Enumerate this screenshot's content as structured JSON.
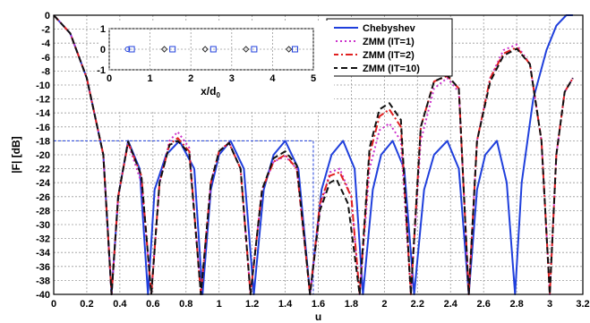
{
  "chart_data": [
    {
      "type": "line",
      "xlabel": "u",
      "ylabel": "|F| [dB]",
      "xlim": [
        0,
        3.2
      ],
      "ylim": [
        -40,
        0
      ],
      "grid": true,
      "legend_position": "top-right",
      "x_ticks": [
        "0",
        "0.2",
        "0.4",
        "0.6",
        "0.8",
        "1",
        "1.2",
        "1.4",
        "1.6",
        "1.8",
        "2",
        "2.2",
        "2.4",
        "2.6",
        "2.8",
        "3",
        "3.2"
      ],
      "y_ticks": [
        "0",
        "-2",
        "-4",
        "-6",
        "-8",
        "-10",
        "-12",
        "-14",
        "-16",
        "-18",
        "-20",
        "-22",
        "-24",
        "-26",
        "-28",
        "-30",
        "-32",
        "-34",
        "-36",
        "-38",
        "-40"
      ],
      "reference_line": {
        "y": -18,
        "x_range": [
          0,
          1.57
        ]
      },
      "series": [
        {
          "name": "Chebyshev",
          "color": "#1f3fdc",
          "dash": "solid",
          "points": [
            [
              0,
              0
            ],
            [
              0.1,
              -2.6
            ],
            [
              0.2,
              -9
            ],
            [
              0.3,
              -20
            ],
            [
              0.35,
              -40
            ],
            [
              0.39,
              -26
            ],
            [
              0.45,
              -18
            ],
            [
              0.52,
              -22
            ],
            [
              0.57,
              -40
            ],
            [
              0.61,
              -25
            ],
            [
              0.68,
              -20
            ],
            [
              0.76,
              -18
            ],
            [
              0.85,
              -22
            ],
            [
              0.9,
              -40
            ],
            [
              0.95,
              -25
            ],
            [
              1.0,
              -20
            ],
            [
              1.07,
              -18
            ],
            [
              1.15,
              -22
            ],
            [
              1.21,
              -40
            ],
            [
              1.27,
              -25
            ],
            [
              1.33,
              -20
            ],
            [
              1.4,
              -18
            ],
            [
              1.48,
              -22
            ],
            [
              1.55,
              -40
            ],
            [
              1.62,
              -25
            ],
            [
              1.68,
              -20
            ],
            [
              1.75,
              -18
            ],
            [
              1.82,
              -22
            ],
            [
              1.87,
              -40
            ],
            [
              1.93,
              -25
            ],
            [
              1.98,
              -20
            ],
            [
              2.05,
              -18
            ],
            [
              2.12,
              -22
            ],
            [
              2.18,
              -40
            ],
            [
              2.24,
              -25
            ],
            [
              2.3,
              -20
            ],
            [
              2.38,
              -18
            ],
            [
              2.45,
              -22
            ],
            [
              2.51,
              -40
            ],
            [
              2.56,
              -25
            ],
            [
              2.61,
              -20
            ],
            [
              2.68,
              -18
            ],
            [
              2.74,
              -24
            ],
            [
              2.79,
              -40
            ],
            [
              2.83,
              -24
            ],
            [
              2.9,
              -12
            ],
            [
              2.98,
              -5
            ],
            [
              3.04,
              -1.5
            ],
            [
              3.1,
              0
            ],
            [
              3.14,
              0
            ]
          ]
        },
        {
          "name": "ZMM (IT=1)",
          "color": "#cc33cc",
          "dash": "dotted",
          "points": [
            [
              0,
              0
            ],
            [
              0.1,
              -2.6
            ],
            [
              0.2,
              -9
            ],
            [
              0.3,
              -20
            ],
            [
              0.35,
              -40
            ],
            [
              0.39,
              -26
            ],
            [
              0.45,
              -18.3
            ],
            [
              0.53,
              -24
            ],
            [
              0.59,
              -40
            ],
            [
              0.64,
              -24
            ],
            [
              0.7,
              -18
            ],
            [
              0.75,
              -16.7
            ],
            [
              0.82,
              -19
            ],
            [
              0.89,
              -40
            ],
            [
              0.95,
              -24
            ],
            [
              1.0,
              -19.5
            ],
            [
              1.06,
              -18.2
            ],
            [
              1.13,
              -22
            ],
            [
              1.19,
              -40
            ],
            [
              1.26,
              -25
            ],
            [
              1.33,
              -21
            ],
            [
              1.4,
              -20.2
            ],
            [
              1.47,
              -22
            ],
            [
              1.55,
              -40
            ],
            [
              1.61,
              -28
            ],
            [
              1.67,
              -22.5
            ],
            [
              1.73,
              -22
            ],
            [
              1.8,
              -26
            ],
            [
              1.85,
              -40
            ],
            [
              1.91,
              -22
            ],
            [
              1.97,
              -16.5
            ],
            [
              2.03,
              -15.5
            ],
            [
              2.1,
              -18
            ],
            [
              2.16,
              -40
            ],
            [
              2.22,
              -18
            ],
            [
              2.3,
              -10.5
            ],
            [
              2.38,
              -9
            ],
            [
              2.45,
              -11
            ],
            [
              2.51,
              -40
            ],
            [
              2.56,
              -18
            ],
            [
              2.64,
              -9
            ],
            [
              2.72,
              -5
            ],
            [
              2.8,
              -4.2
            ],
            [
              2.88,
              -7
            ],
            [
              2.95,
              -18
            ],
            [
              3.0,
              -40
            ],
            [
              3.04,
              -20
            ],
            [
              3.09,
              -11
            ],
            [
              3.14,
              -9
            ]
          ]
        },
        {
          "name": "ZMM (IT=2)",
          "color": "#e02020",
          "dash": "dashdot",
          "points": [
            [
              0,
              0
            ],
            [
              0.1,
              -2.6
            ],
            [
              0.2,
              -9
            ],
            [
              0.3,
              -20
            ],
            [
              0.35,
              -40
            ],
            [
              0.39,
              -26
            ],
            [
              0.45,
              -18.2
            ],
            [
              0.53,
              -23
            ],
            [
              0.59,
              -40
            ],
            [
              0.64,
              -24
            ],
            [
              0.7,
              -18.5
            ],
            [
              0.75,
              -17.6
            ],
            [
              0.82,
              -19.5
            ],
            [
              0.89,
              -40
            ],
            [
              0.95,
              -24
            ],
            [
              1.0,
              -19.5
            ],
            [
              1.06,
              -18.3
            ],
            [
              1.13,
              -22
            ],
            [
              1.19,
              -40
            ],
            [
              1.26,
              -25
            ],
            [
              1.33,
              -21
            ],
            [
              1.4,
              -20
            ],
            [
              1.47,
              -22
            ],
            [
              1.55,
              -40
            ],
            [
              1.61,
              -27
            ],
            [
              1.67,
              -23
            ],
            [
              1.73,
              -22.5
            ],
            [
              1.8,
              -26
            ],
            [
              1.85,
              -40
            ],
            [
              1.91,
              -20
            ],
            [
              1.97,
              -14.5
            ],
            [
              2.03,
              -13.5
            ],
            [
              2.1,
              -16
            ],
            [
              2.16,
              -40
            ],
            [
              2.22,
              -16
            ],
            [
              2.3,
              -9.5
            ],
            [
              2.38,
              -8.7
            ],
            [
              2.45,
              -10.5
            ],
            [
              2.51,
              -40
            ],
            [
              2.56,
              -18
            ],
            [
              2.64,
              -9
            ],
            [
              2.72,
              -5.5
            ],
            [
              2.8,
              -4.6
            ],
            [
              2.88,
              -7
            ],
            [
              2.95,
              -18
            ],
            [
              3.0,
              -40
            ],
            [
              3.04,
              -20
            ],
            [
              3.09,
              -11
            ],
            [
              3.14,
              -9
            ]
          ]
        },
        {
          "name": "ZMM (IT=10)",
          "color": "#111111",
          "dash": "dashed",
          "points": [
            [
              0,
              0
            ],
            [
              0.1,
              -2.6
            ],
            [
              0.2,
              -9
            ],
            [
              0.3,
              -20
            ],
            [
              0.35,
              -40
            ],
            [
              0.39,
              -26
            ],
            [
              0.45,
              -18.1
            ],
            [
              0.53,
              -23
            ],
            [
              0.59,
              -40
            ],
            [
              0.64,
              -24
            ],
            [
              0.7,
              -18.6
            ],
            [
              0.75,
              -18
            ],
            [
              0.82,
              -19.8
            ],
            [
              0.89,
              -40
            ],
            [
              0.95,
              -24
            ],
            [
              1.0,
              -19.5
            ],
            [
              1.06,
              -18.3
            ],
            [
              1.13,
              -22
            ],
            [
              1.19,
              -40
            ],
            [
              1.26,
              -25
            ],
            [
              1.33,
              -20.5
            ],
            [
              1.4,
              -19.5
            ],
            [
              1.47,
              -21.5
            ],
            [
              1.55,
              -40
            ],
            [
              1.61,
              -28
            ],
            [
              1.67,
              -24
            ],
            [
              1.71,
              -23.5
            ],
            [
              1.78,
              -27
            ],
            [
              1.85,
              -40
            ],
            [
              1.91,
              -19
            ],
            [
              1.97,
              -13.5
            ],
            [
              2.03,
              -12.6
            ],
            [
              2.1,
              -15
            ],
            [
              2.16,
              -40
            ],
            [
              2.22,
              -16
            ],
            [
              2.3,
              -9.5
            ],
            [
              2.38,
              -8.6
            ],
            [
              2.45,
              -10.5
            ],
            [
              2.51,
              -40
            ],
            [
              2.56,
              -18
            ],
            [
              2.64,
              -9.5
            ],
            [
              2.72,
              -5.8
            ],
            [
              2.8,
              -4.8
            ],
            [
              2.88,
              -7
            ],
            [
              2.95,
              -18
            ],
            [
              3.0,
              -40
            ],
            [
              3.04,
              -20
            ],
            [
              3.09,
              -11
            ],
            [
              3.14,
              -9
            ]
          ]
        }
      ]
    },
    {
      "type": "scatter",
      "xlabel": "x/d_0",
      "ylabel": "",
      "xlim": [
        0,
        5
      ],
      "ylim": [
        -1,
        1
      ],
      "x_ticks": [
        "0",
        "1",
        "2",
        "3",
        "4",
        "5"
      ],
      "y_ticks": [
        "1",
        "0",
        "-1"
      ],
      "grid": true,
      "series": [
        {
          "marker": "circle",
          "color": "#1f3fdc",
          "x": [
            0.45
          ],
          "y": [
            0
          ]
        },
        {
          "marker": "diamond",
          "color": "#333333",
          "x": [
            1.35,
            2.35,
            3.35,
            4.4
          ],
          "y": [
            0,
            0,
            0,
            0
          ]
        },
        {
          "marker": "square",
          "color": "#1f3fdc",
          "x": [
            0.55,
            1.55,
            2.55,
            3.55,
            4.55
          ],
          "y": [
            0,
            0,
            0,
            0,
            0
          ]
        }
      ]
    }
  ]
}
